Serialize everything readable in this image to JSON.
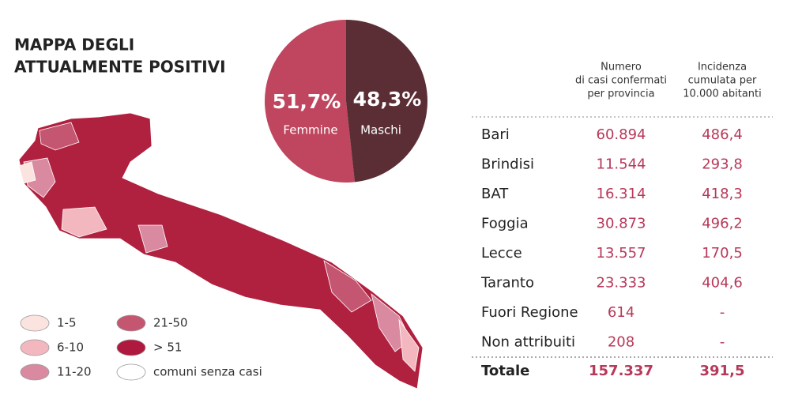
{
  "title": [
    "MAPPA DEGLI",
    "ATTUALMENTE POSITIVI"
  ],
  "chart_data": {
    "type": "pie",
    "categories": [
      "Femmine",
      "Maschi"
    ],
    "values": [
      51.7,
      48.3
    ],
    "value_labels": [
      "51,7%",
      "48,3%"
    ],
    "colors": [
      "#c0455f",
      "#5a2e34"
    ]
  },
  "legend": [
    {
      "label": "1-5",
      "color": "#fbe3df"
    },
    {
      "label": "6-10",
      "color": "#f3b7bf"
    },
    {
      "label": "11-20",
      "color": "#d98aa0"
    },
    {
      "label": "21-50",
      "color": "#c55671"
    },
    {
      "label": "> 51",
      "color": "#b0193f"
    },
    {
      "label": "comuni senza casi",
      "color": "#ffffff"
    }
  ],
  "table": {
    "columns": [
      [
        "Numero",
        "di casi confermati",
        "per provincia"
      ],
      [
        "Incidenza",
        "cumulata per",
        "10.000 abitanti"
      ]
    ],
    "rows": [
      [
        "Bari",
        "60.894",
        "486,4"
      ],
      [
        "Brindisi",
        "11.544",
        "293,8"
      ],
      [
        "BAT",
        "16.314",
        "418,3"
      ],
      [
        "Foggia",
        "30.873",
        "496,2"
      ],
      [
        "Lecce",
        "13.557",
        "170,5"
      ],
      [
        "Taranto",
        "23.333",
        "404,6"
      ],
      [
        "Fuori Regione",
        "614",
        "-"
      ],
      [
        "Non attribuiti",
        "208",
        "-"
      ]
    ],
    "total": [
      "Totale",
      "157.337",
      "391,5"
    ]
  }
}
